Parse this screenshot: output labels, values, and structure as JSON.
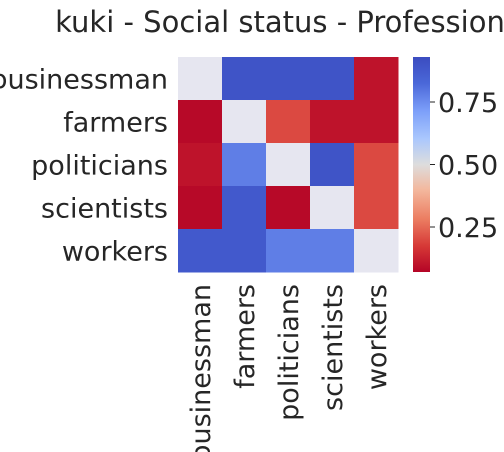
{
  "chart_data": {
    "type": "heatmap",
    "title": "kuki - Social status - Profession",
    "rows": [
      "businessman",
      "farmers",
      "politicians",
      "scientists",
      "workers"
    ],
    "columns": [
      "businessman",
      "farmers",
      "politicians",
      "scientists",
      "workers"
    ],
    "values": [
      [
        0.5,
        0.9,
        0.9,
        0.9,
        0.1
      ],
      [
        0.08,
        0.5,
        0.2,
        0.1,
        0.1
      ],
      [
        0.1,
        0.78,
        0.5,
        0.9,
        0.2
      ],
      [
        0.08,
        0.88,
        0.08,
        0.5,
        0.2
      ],
      [
        0.88,
        0.88,
        0.78,
        0.78,
        0.5
      ]
    ],
    "colorbar": {
      "colormap": "coolwarm_r",
      "range": [
        0.07,
        0.93
      ],
      "ticks": [
        0.25,
        0.5,
        0.75
      ],
      "tick_labels": [
        "0.25",
        "0.50",
        "0.75"
      ]
    },
    "xlabel": "",
    "ylabel": "",
    "grid": false
  }
}
